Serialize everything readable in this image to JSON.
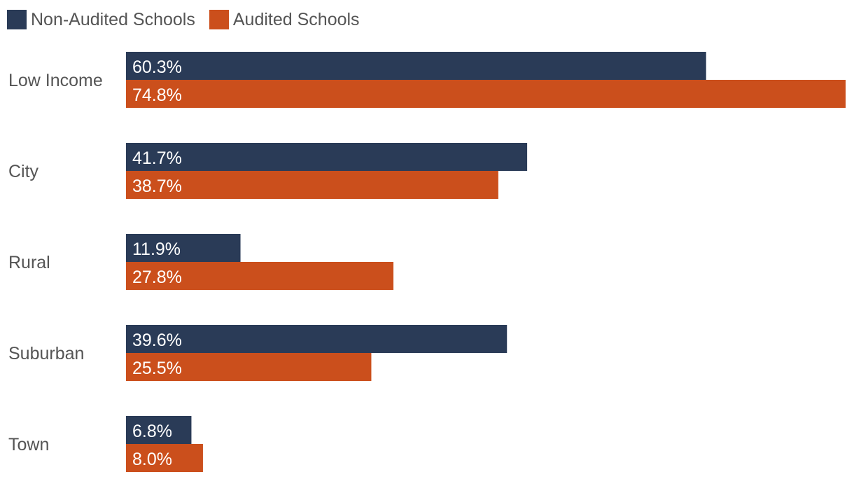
{
  "chart_data": {
    "type": "bar",
    "orientation": "horizontal",
    "categories": [
      "Low Income",
      "City",
      "Rural",
      "Suburban",
      "Town"
    ],
    "series": [
      {
        "name": "Non-Audited Schools",
        "color": "#2a3b57",
        "values": [
          60.3,
          41.7,
          11.9,
          39.6,
          6.8
        ],
        "labels": [
          "60.3%",
          "41.7%",
          "11.9%",
          "39.6%",
          "6.8%"
        ]
      },
      {
        "name": "Audited Schools",
        "color": "#cb4f1c",
        "values": [
          74.8,
          38.7,
          27.8,
          25.5,
          8.0
        ],
        "labels": [
          "74.8%",
          "38.7%",
          "27.8%",
          "25.5%",
          "8.0%"
        ]
      }
    ],
    "xlim": [
      0,
      74.8
    ],
    "grid": false,
    "legend": "top-left"
  }
}
